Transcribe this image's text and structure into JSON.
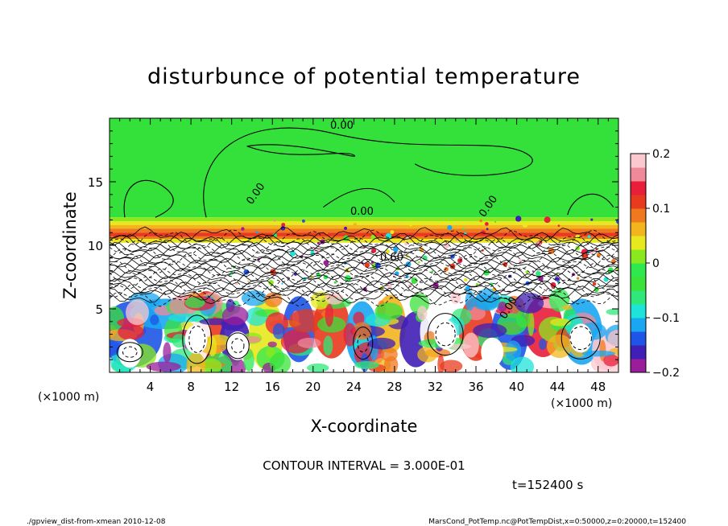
{
  "chart_data": {
    "type": "heatmap",
    "title": "disturbunce of potential temperature",
    "xlabel": "X-coordinate",
    "ylabel": "Z-coordinate",
    "x_unit": "(×1000 m)",
    "z_unit": "(×1000 m)",
    "xlim": [
      0,
      50
    ],
    "ylim": [
      0,
      20
    ],
    "x_ticks": [
      "4",
      "8",
      "12",
      "16",
      "20",
      "24",
      "28",
      "32",
      "36",
      "40",
      "44",
      "48"
    ],
    "y_ticks": [
      "5",
      "10",
      "15"
    ],
    "colorbar": {
      "range": [
        -0.2,
        0.2
      ],
      "ticks": [
        "0.2",
        "0.1",
        "0",
        "−0.1",
        "−0.2"
      ],
      "colors": [
        "#9a1e9a",
        "#3f1fb5",
        "#1e55e6",
        "#19a7f2",
        "#1ee3d8",
        "#2ee87a",
        "#3ae23a",
        "#2ee84e",
        "#8ae81e",
        "#e8e81e",
        "#f3b51e",
        "#f0781e",
        "#e83a1e",
        "#e81e3a",
        "#f08a9a",
        "#fcc8d0"
      ]
    },
    "contour_labels": [
      "0.00",
      "0.00",
      "0.00",
      "0.00",
      "0.60",
      "0.00"
    ],
    "contour_interval_text": "CONTOUR INTERVAL = 3.000E-01",
    "time_text": "t=152400 s"
  },
  "footer": {
    "left": "./gpview_dist-from-xmean  2010-12-08",
    "right": "MarsCond_PotTemp.nc@PotTempDist,x=0:50000,z=0:20000,t=152400"
  }
}
